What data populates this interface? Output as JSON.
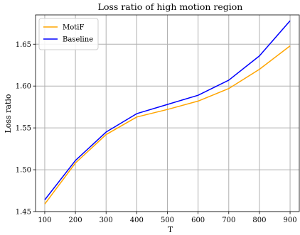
{
  "chart_data": {
    "type": "line",
    "title": "Loss ratio of high motion region",
    "xlabel": "T",
    "ylabel": "Loss ratio",
    "x": [
      100,
      200,
      300,
      400,
      500,
      600,
      700,
      800,
      900
    ],
    "xlim": [
      70,
      930
    ],
    "ylim": [
      1.45,
      1.685
    ],
    "xticks": [
      100,
      200,
      300,
      400,
      500,
      600,
      700,
      800,
      900
    ],
    "yticks": [
      1.45,
      1.5,
      1.55,
      1.6,
      1.65
    ],
    "ytick_labels": [
      "1.45",
      "1.50",
      "1.55",
      "1.60",
      "1.65"
    ],
    "grid": true,
    "legend_position": "top-left",
    "series": [
      {
        "name": "MotiF",
        "color": "#ffa500",
        "values": [
          1.459,
          1.508,
          1.542,
          1.563,
          1.572,
          1.582,
          1.597,
          1.62,
          1.648
        ]
      },
      {
        "name": "Baseline",
        "color": "#0000ff",
        "values": [
          1.464,
          1.511,
          1.545,
          1.567,
          1.578,
          1.589,
          1.607,
          1.636,
          1.678
        ]
      }
    ]
  }
}
